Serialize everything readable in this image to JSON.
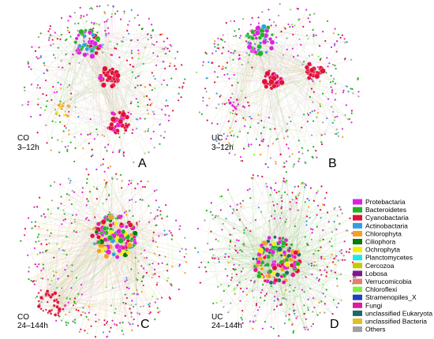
{
  "panels": [
    {
      "id": "A",
      "letter": "A",
      "condition": "CO",
      "time": "3–12h"
    },
    {
      "id": "B",
      "letter": "B",
      "condition": "UC",
      "time": "3–12h"
    },
    {
      "id": "C",
      "letter": "C",
      "condition": "CO",
      "time": "24–144h"
    },
    {
      "id": "D",
      "letter": "D",
      "condition": "UC",
      "time": "24–144h"
    }
  ],
  "legend": [
    {
      "label": "Protebactaria",
      "color": "#e020e0"
    },
    {
      "label": "Bacteroidetes",
      "color": "#22b222"
    },
    {
      "label": "Cyanobactaria",
      "color": "#e0103a"
    },
    {
      "label": "Actinobactaria",
      "color": "#2f9fe0"
    },
    {
      "label": "Chlorophyta",
      "color": "#f2a020"
    },
    {
      "label": "Ciliophora",
      "color": "#0a7a0a"
    },
    {
      "label": "Ochrophyta",
      "color": "#f5f000"
    },
    {
      "label": "Planctomycetes",
      "color": "#20e8e8"
    },
    {
      "label": "Cercozoa",
      "color": "#c8c800"
    },
    {
      "label": "Lobosa",
      "color": "#7a1a8a"
    },
    {
      "label": "Verrucomicobia",
      "color": "#e08070"
    },
    {
      "label": "Chloroflexi",
      "color": "#80f040"
    },
    {
      "label": "Stramenopiles_X",
      "color": "#2040c0"
    },
    {
      "label": "Fungi",
      "color": "#e01aa0"
    },
    {
      "label": "unclassified Eukaryota",
      "color": "#1a6a6a"
    },
    {
      "label": "unclassified Bacteria",
      "color": "#e0c020"
    },
    {
      "label": "Others",
      "color": "#a0a0a0"
    }
  ]
}
